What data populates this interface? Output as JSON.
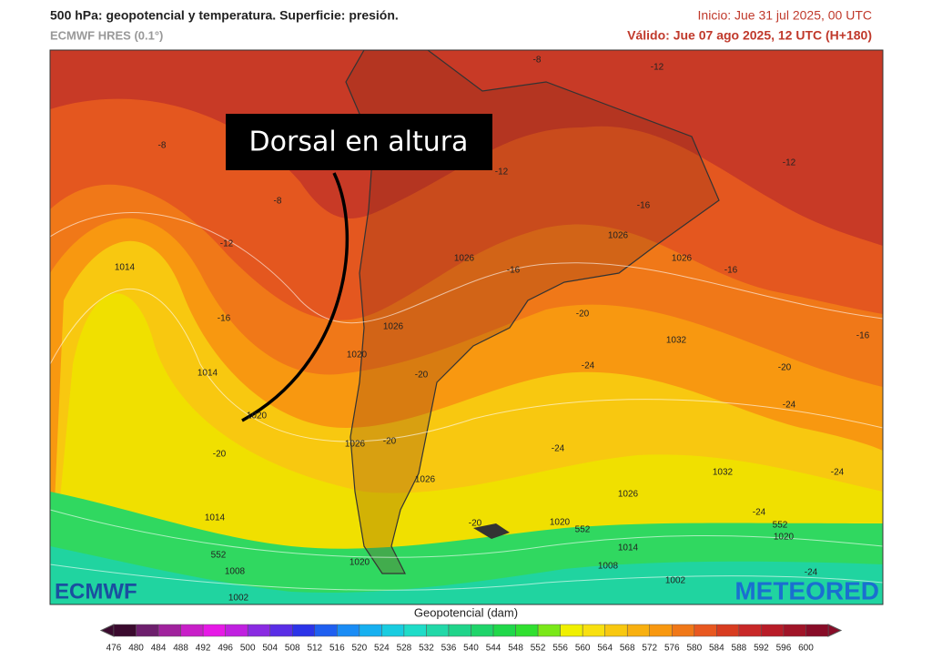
{
  "header": {
    "title": "500 hPa: geopotencial y temperatura. Superficie: presión.",
    "subtitle": "ECMWF HRES (0.1°)",
    "init": "Inicio: Jue 31 jul 2025, 00 UTC",
    "valid": "Válido: Jue 07 ago 2025, 12 UTC (H+180)"
  },
  "annotation": "Dorsal en altura",
  "contour_labels": [
    -8,
    -8,
    -8,
    -12,
    -12,
    -12,
    -12,
    -16,
    -16,
    -16,
    -16,
    -16,
    -20,
    -20,
    -20,
    -20,
    -20,
    -20,
    -24,
    -24,
    -24,
    -24,
    -24,
    -24,
    1014,
    1014,
    1014,
    1014,
    1020,
    1020,
    1020,
    1020,
    1020,
    1026,
    1026,
    1026,
    1026,
    1026,
    1026,
    1026,
    1032,
    1032,
    1008,
    1008,
    1002,
    1002,
    552,
    552,
    552
  ],
  "logos": {
    "left": "ECMWF",
    "right": "METEORED"
  },
  "colorbar": {
    "title": "Geopotencial (dam)",
    "ticks": [
      476,
      480,
      484,
      488,
      492,
      496,
      500,
      504,
      508,
      512,
      516,
      520,
      524,
      528,
      532,
      536,
      540,
      544,
      548,
      552,
      556,
      560,
      564,
      568,
      572,
      576,
      580,
      584,
      588,
      592,
      596,
      600
    ],
    "colors": [
      "#3a0a2e",
      "#6d1f6d",
      "#a0229d",
      "#c81fc8",
      "#e619e6",
      "#c020e0",
      "#8a2be2",
      "#5a2ee6",
      "#2c34e8",
      "#1f5ff0",
      "#1a8cf5",
      "#17b0f0",
      "#19cce0",
      "#1fdcc8",
      "#22d8a8",
      "#20d48a",
      "#1fd46a",
      "#20d84a",
      "#30e030",
      "#7ae818",
      "#f0f000",
      "#f8e010",
      "#f8c810",
      "#f8b010",
      "#f89810",
      "#f07818",
      "#e85820",
      "#d83c20",
      "#c82828",
      "#b81c28",
      "#a01428",
      "#880c28"
    ]
  }
}
